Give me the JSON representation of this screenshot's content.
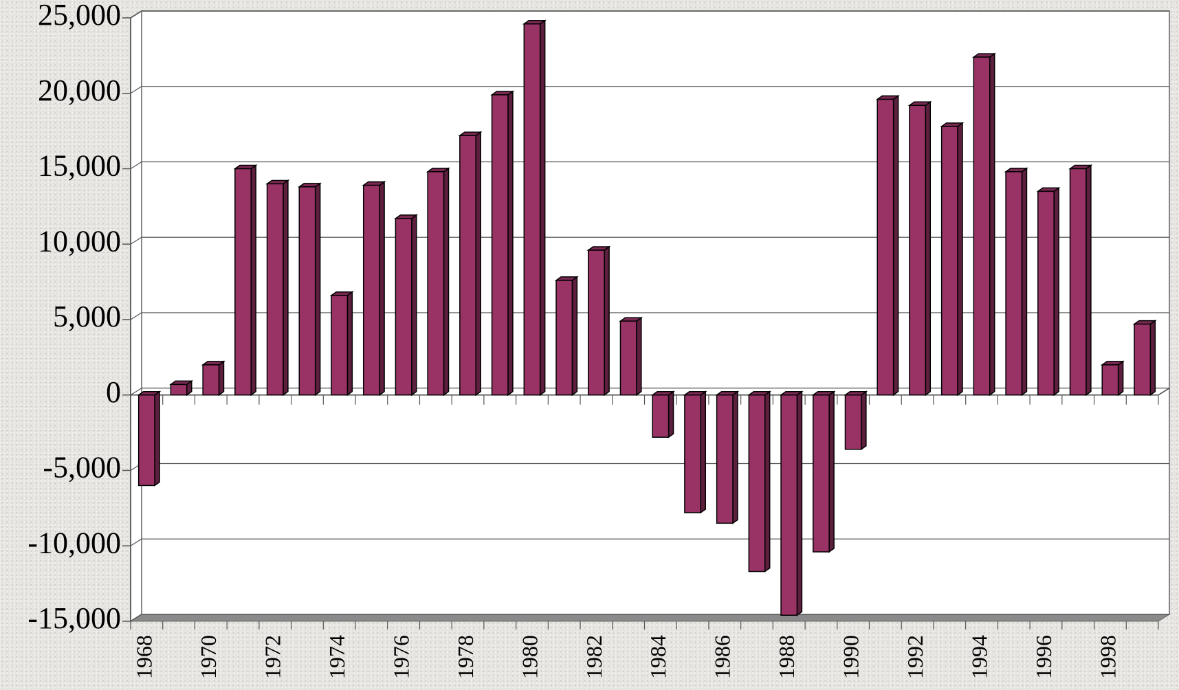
{
  "chart_data": {
    "type": "bar3d",
    "categories": [
      "1968",
      null,
      "1970",
      null,
      "1972",
      null,
      "1974",
      null,
      "1976",
      null,
      "1978",
      null,
      "1980",
      null,
      "1982",
      null,
      "1984",
      null,
      "1986",
      null,
      "1988",
      null,
      "1990",
      null,
      "1992",
      null,
      "1994",
      null,
      "1996",
      null,
      "1998",
      null
    ],
    "values": [
      -6000,
      700,
      2000,
      15000,
      14000,
      13800,
      6600,
      13900,
      11700,
      14800,
      17200,
      19900,
      24600,
      7600,
      9600,
      4900,
      -2800,
      -7800,
      -8500,
      -11700,
      -14600,
      -10400,
      -3600,
      19600,
      19200,
      17800,
      22400,
      14800,
      13500,
      15000,
      2000,
      4700
    ],
    "color": "#993366",
    "ylim": [
      -15000,
      25000
    ],
    "yticks": [
      {
        "value": -15000,
        "label": "-15,000"
      },
      {
        "value": -10000,
        "label": "-10,000"
      },
      {
        "value": -5000,
        "label": "-5,000"
      },
      0,
      {
        "value": 5000,
        "label": "5,000"
      },
      {
        "value": 10000,
        "label": "10,000"
      },
      {
        "value": 15000,
        "label": "15,000"
      },
      {
        "value": 20000,
        "label": "20,000"
      },
      {
        "value": 25000,
        "label": "25,000"
      }
    ],
    "grid": true
  }
}
